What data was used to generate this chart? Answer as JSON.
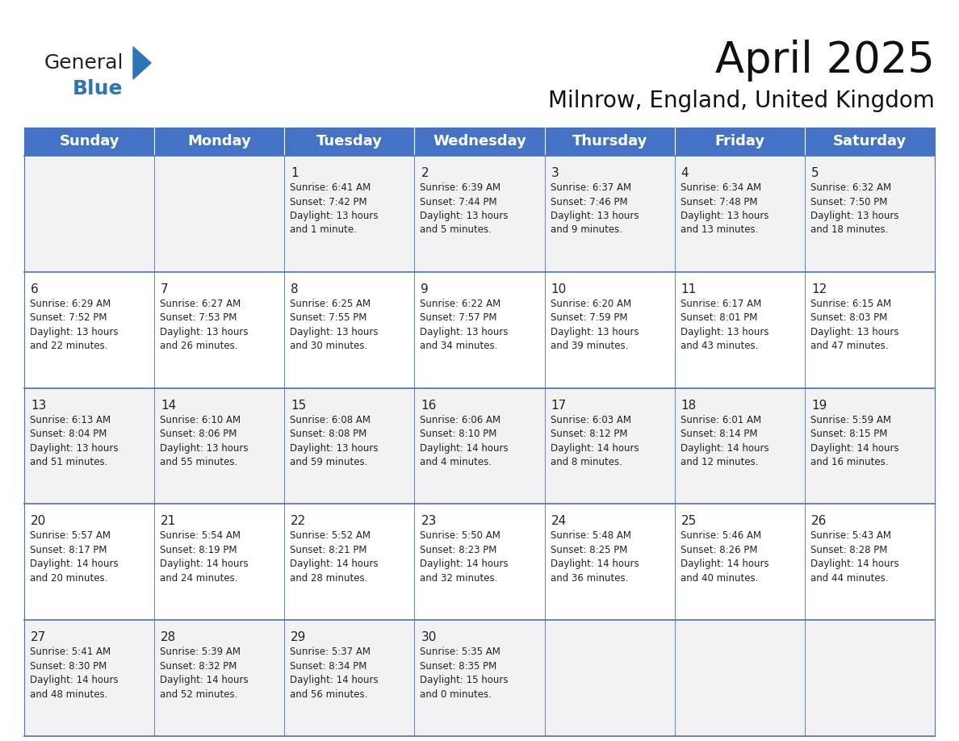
{
  "title": "April 2025",
  "subtitle": "Milnrow, England, United Kingdom",
  "header_bg": "#4472C4",
  "header_text_color": "#FFFFFF",
  "cell_bg_even": "#F2F2F2",
  "cell_bg_odd": "#FFFFFF",
  "border_color": "#4472C4",
  "days_of_week": [
    "Sunday",
    "Monday",
    "Tuesday",
    "Wednesday",
    "Thursday",
    "Friday",
    "Saturday"
  ],
  "calendar_data": [
    [
      {
        "day": "",
        "info": ""
      },
      {
        "day": "",
        "info": ""
      },
      {
        "day": "1",
        "info": "Sunrise: 6:41 AM\nSunset: 7:42 PM\nDaylight: 13 hours\nand 1 minute."
      },
      {
        "day": "2",
        "info": "Sunrise: 6:39 AM\nSunset: 7:44 PM\nDaylight: 13 hours\nand 5 minutes."
      },
      {
        "day": "3",
        "info": "Sunrise: 6:37 AM\nSunset: 7:46 PM\nDaylight: 13 hours\nand 9 minutes."
      },
      {
        "day": "4",
        "info": "Sunrise: 6:34 AM\nSunset: 7:48 PM\nDaylight: 13 hours\nand 13 minutes."
      },
      {
        "day": "5",
        "info": "Sunrise: 6:32 AM\nSunset: 7:50 PM\nDaylight: 13 hours\nand 18 minutes."
      }
    ],
    [
      {
        "day": "6",
        "info": "Sunrise: 6:29 AM\nSunset: 7:52 PM\nDaylight: 13 hours\nand 22 minutes."
      },
      {
        "day": "7",
        "info": "Sunrise: 6:27 AM\nSunset: 7:53 PM\nDaylight: 13 hours\nand 26 minutes."
      },
      {
        "day": "8",
        "info": "Sunrise: 6:25 AM\nSunset: 7:55 PM\nDaylight: 13 hours\nand 30 minutes."
      },
      {
        "day": "9",
        "info": "Sunrise: 6:22 AM\nSunset: 7:57 PM\nDaylight: 13 hours\nand 34 minutes."
      },
      {
        "day": "10",
        "info": "Sunrise: 6:20 AM\nSunset: 7:59 PM\nDaylight: 13 hours\nand 39 minutes."
      },
      {
        "day": "11",
        "info": "Sunrise: 6:17 AM\nSunset: 8:01 PM\nDaylight: 13 hours\nand 43 minutes."
      },
      {
        "day": "12",
        "info": "Sunrise: 6:15 AM\nSunset: 8:03 PM\nDaylight: 13 hours\nand 47 minutes."
      }
    ],
    [
      {
        "day": "13",
        "info": "Sunrise: 6:13 AM\nSunset: 8:04 PM\nDaylight: 13 hours\nand 51 minutes."
      },
      {
        "day": "14",
        "info": "Sunrise: 6:10 AM\nSunset: 8:06 PM\nDaylight: 13 hours\nand 55 minutes."
      },
      {
        "day": "15",
        "info": "Sunrise: 6:08 AM\nSunset: 8:08 PM\nDaylight: 13 hours\nand 59 minutes."
      },
      {
        "day": "16",
        "info": "Sunrise: 6:06 AM\nSunset: 8:10 PM\nDaylight: 14 hours\nand 4 minutes."
      },
      {
        "day": "17",
        "info": "Sunrise: 6:03 AM\nSunset: 8:12 PM\nDaylight: 14 hours\nand 8 minutes."
      },
      {
        "day": "18",
        "info": "Sunrise: 6:01 AM\nSunset: 8:14 PM\nDaylight: 14 hours\nand 12 minutes."
      },
      {
        "day": "19",
        "info": "Sunrise: 5:59 AM\nSunset: 8:15 PM\nDaylight: 14 hours\nand 16 minutes."
      }
    ],
    [
      {
        "day": "20",
        "info": "Sunrise: 5:57 AM\nSunset: 8:17 PM\nDaylight: 14 hours\nand 20 minutes."
      },
      {
        "day": "21",
        "info": "Sunrise: 5:54 AM\nSunset: 8:19 PM\nDaylight: 14 hours\nand 24 minutes."
      },
      {
        "day": "22",
        "info": "Sunrise: 5:52 AM\nSunset: 8:21 PM\nDaylight: 14 hours\nand 28 minutes."
      },
      {
        "day": "23",
        "info": "Sunrise: 5:50 AM\nSunset: 8:23 PM\nDaylight: 14 hours\nand 32 minutes."
      },
      {
        "day": "24",
        "info": "Sunrise: 5:48 AM\nSunset: 8:25 PM\nDaylight: 14 hours\nand 36 minutes."
      },
      {
        "day": "25",
        "info": "Sunrise: 5:46 AM\nSunset: 8:26 PM\nDaylight: 14 hours\nand 40 minutes."
      },
      {
        "day": "26",
        "info": "Sunrise: 5:43 AM\nSunset: 8:28 PM\nDaylight: 14 hours\nand 44 minutes."
      }
    ],
    [
      {
        "day": "27",
        "info": "Sunrise: 5:41 AM\nSunset: 8:30 PM\nDaylight: 14 hours\nand 48 minutes."
      },
      {
        "day": "28",
        "info": "Sunrise: 5:39 AM\nSunset: 8:32 PM\nDaylight: 14 hours\nand 52 minutes."
      },
      {
        "day": "29",
        "info": "Sunrise: 5:37 AM\nSunset: 8:34 PM\nDaylight: 14 hours\nand 56 minutes."
      },
      {
        "day": "30",
        "info": "Sunrise: 5:35 AM\nSunset: 8:35 PM\nDaylight: 15 hours\nand 0 minutes."
      },
      {
        "day": "",
        "info": ""
      },
      {
        "day": "",
        "info": ""
      },
      {
        "day": "",
        "info": ""
      }
    ]
  ],
  "logo_text_general": "General",
  "logo_text_blue": "Blue",
  "logo_blue": "#2E75B6",
  "logo_black": "#222222",
  "title_fontsize": 38,
  "subtitle_fontsize": 20,
  "header_fontsize": 13,
  "day_num_fontsize": 11,
  "info_fontsize": 8.5,
  "fig_width": 11.88,
  "fig_height": 9.18
}
